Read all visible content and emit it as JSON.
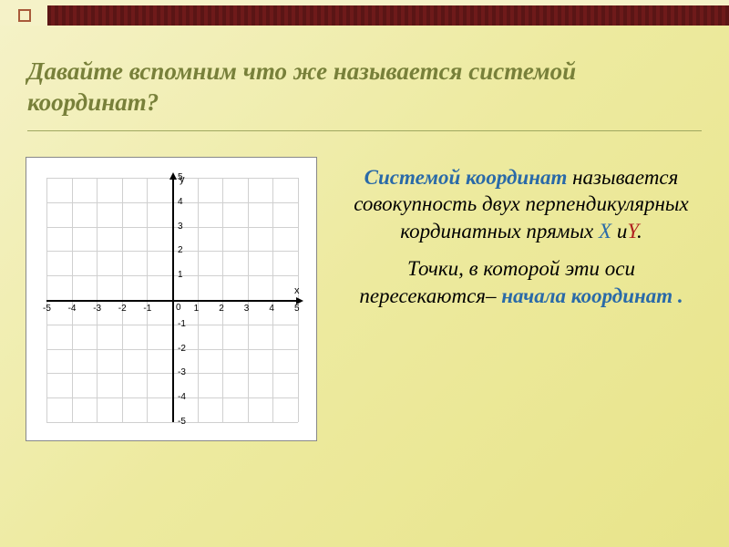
{
  "slide": {
    "title": "Давайте вспомним что же называется системой координат?",
    "decor": {
      "bar_color": "#6e1a1a",
      "square_border": "#a85a3a"
    }
  },
  "chart": {
    "type": "scatter",
    "background_color": "#ffffff",
    "grid_color": "#d0d0d0",
    "axis_color": "#000000",
    "xlim": [
      -5,
      5
    ],
    "ylim": [
      -5,
      5
    ],
    "xtick_step": 1,
    "ytick_step": 1,
    "xticks": [
      -5,
      -4,
      -3,
      -2,
      -1,
      0,
      1,
      2,
      3,
      4,
      5
    ],
    "yticks": [
      -5,
      -4,
      -3,
      -2,
      -1,
      1,
      2,
      3,
      4,
      5
    ],
    "xlabel": "x",
    "ylabel": "y",
    "origin_label": "0",
    "tick_fontsize": 10,
    "axis_label_fontsize": 11
  },
  "text": {
    "term": "Системой координат",
    "p1_rest": " называется совокупность двух перпендикулярных кординатных  прямых ",
    "x_var": "X",
    "p1_conj": " и",
    "y_var": "Y",
    "p1_end": ".",
    "p2_a": "Точки, в которой эти оси пересекаются– ",
    "origin": "начала координат .",
    "term_color": "#2a6aa8",
    "y_color": "#b02020",
    "body_fontsize": 23
  }
}
